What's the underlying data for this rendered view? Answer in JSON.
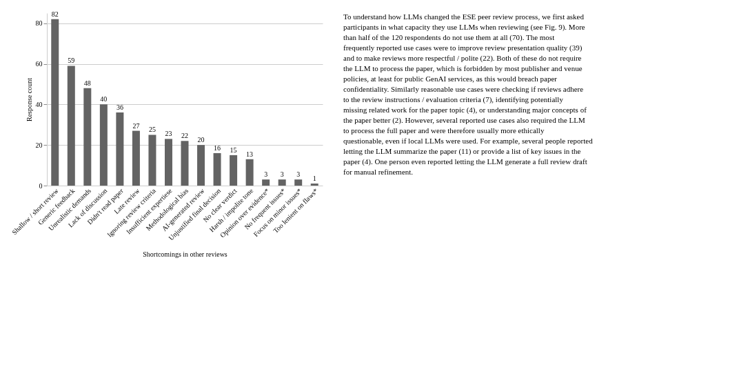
{
  "chart_data": {
    "type": "bar",
    "xlabel": "Shortcomings in other reviews",
    "ylabel": "Response count",
    "categories": [
      "Shallow / short review",
      "Generic feedback",
      "Unrealistic demands",
      "Lack of discussion",
      "Didn't read paper",
      "Late review",
      "Ignoring review criteria",
      "Insufficient expertiese",
      "Methodological bias",
      "AI-generated review",
      "Unjustified final decision",
      "No clear verdict",
      "Harsh / impolite tone",
      "Opinion over evidence*",
      "No frequent issues*",
      "Focus on minor issues*",
      "Too lenient on flaws*"
    ],
    "values": [
      82,
      59,
      48,
      40,
      36,
      27,
      25,
      23,
      22,
      20,
      16,
      15,
      13,
      3,
      3,
      3,
      1
    ],
    "color": "#636363",
    "ylim": [
      0,
      85
    ],
    "yticks": [
      0,
      20,
      40,
      60,
      80
    ],
    "grid": "y",
    "data_labels": true,
    "annotations": [
      "To understand how LLMs changed the ESE peer review process, we first asked participants in what capacity they use LLMs when reviewing (see Fig. 9). More than half of the 120 respondents do not use them at all (70). The most frequently reported use cases were to improve review presentation quality (39) and to make reviews more respectful / polite (22). Both of these do not require the LLM to process the paper, which is forbidden by most publisher and venue policies, at least for public GenAI services, as this would breach paper confidentiality. Similarly reasonable use cases were checking if reviews adhere to the review instructions / evaluation criteria (7), identifying potentially missing related work for the paper topic (4), or understanding major concepts of the paper better (2). However, several reported use cases also required the LLM to process the full paper and were therefore usually more ethically questionable, even if local LLMs were used. For example, several people reported letting the LLM summarize the paper (11) or provide a list of key issues in the paper (4). One person even reported letting the LLM generate a full review draft for manual refinement."
    ]
  }
}
